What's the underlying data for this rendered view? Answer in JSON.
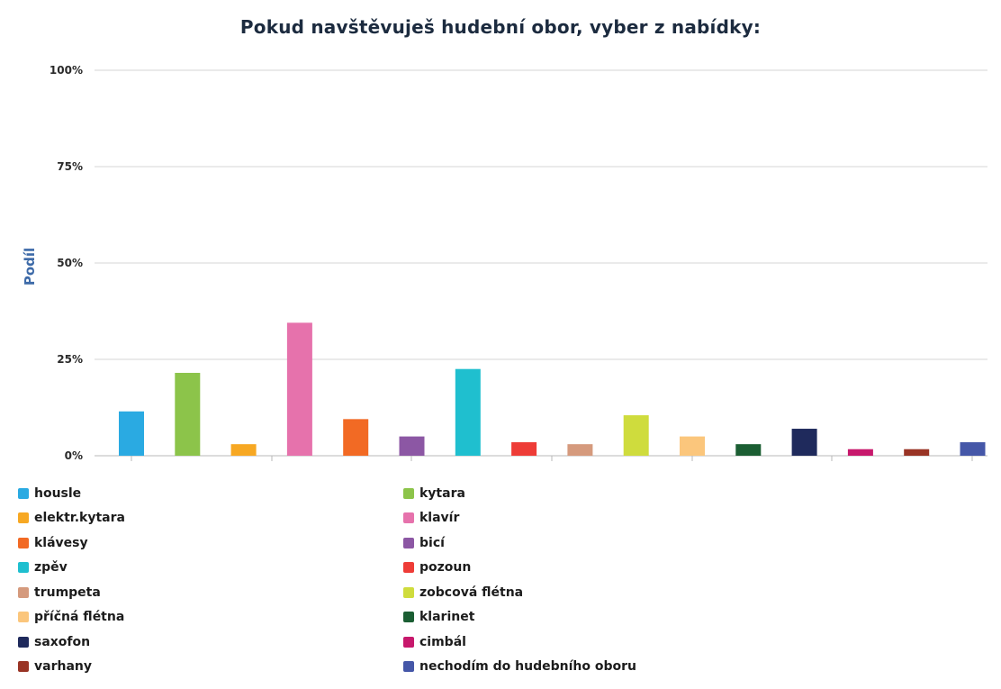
{
  "chart_data": {
    "type": "bar",
    "title": "Pokud navštěvuješ hudební obor, vyber z nabídky:",
    "ylabel": "Podíl",
    "ylim": [
      0,
      100
    ],
    "y_ticks": [
      "0%",
      "25%",
      "50%",
      "75%",
      "100%"
    ],
    "y_tick_values": [
      0,
      25,
      50,
      75,
      100
    ],
    "grid": true,
    "legend_position": "bottom",
    "categories": [
      "housle",
      "kytara",
      "elektr.kytara",
      "klavír",
      "klávesy",
      "bicí",
      "zpěv",
      "pozoun",
      "trumpeta",
      "zobcová flétna",
      "příčná flétna",
      "klarinet",
      "saxofon",
      "cimbál",
      "varhany",
      "nechodím do hudebního oboru"
    ],
    "values": [
      11.5,
      21.5,
      3,
      34.5,
      9.5,
      5,
      22.5,
      3.5,
      3,
      10.5,
      5,
      3,
      7,
      1.7,
      1.7,
      3.5
    ],
    "colors": [
      "#2aaae2",
      "#8cc44a",
      "#f7a823",
      "#e672ac",
      "#f26a24",
      "#8c57a4",
      "#1fbfcf",
      "#ee3c37",
      "#d59a7d",
      "#cfdc3d",
      "#fbc67c",
      "#1b5e33",
      "#1f2a5c",
      "#c7186c",
      "#993425",
      "#4557a8"
    ]
  }
}
